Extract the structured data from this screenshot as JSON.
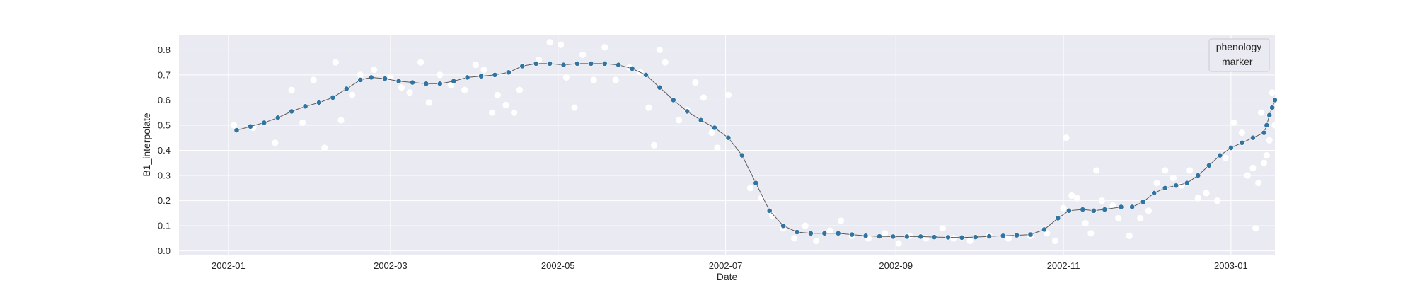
{
  "chart_data": {
    "type": "scatter",
    "title": "",
    "xlabel": "Date",
    "ylabel": "B1_interpolate",
    "xlim": [
      "2001-12-14",
      "2003-01-17"
    ],
    "ylim": [
      -0.015,
      0.86
    ],
    "x_ticks": [
      {
        "date": "2002-01-01",
        "label": "2002-01"
      },
      {
        "date": "2002-03-01",
        "label": "2002-03"
      },
      {
        "date": "2002-05-01",
        "label": "2002-05"
      },
      {
        "date": "2002-07-01",
        "label": "2002-07"
      },
      {
        "date": "2002-09-01",
        "label": "2002-09"
      },
      {
        "date": "2002-11-01",
        "label": "2002-11"
      },
      {
        "date": "2003-01-01",
        "label": "2003-01"
      }
    ],
    "y_ticks": [
      {
        "value": 0.0,
        "label": "0.0"
      },
      {
        "value": 0.1,
        "label": "0.1"
      },
      {
        "value": 0.2,
        "label": "0.2"
      },
      {
        "value": 0.3,
        "label": "0.3"
      },
      {
        "value": 0.4,
        "label": "0.4"
      },
      {
        "value": 0.5,
        "label": "0.5"
      },
      {
        "value": 0.6,
        "label": "0.6"
      },
      {
        "value": 0.7,
        "label": "0.7"
      },
      {
        "value": 0.8,
        "label": "0.8"
      }
    ],
    "grid": true,
    "legend": {
      "title": "phenology",
      "entries": [
        "marker"
      ],
      "placement": "top-right"
    },
    "colors": {
      "background": "#eaeaf2",
      "grid": "#ffffff",
      "interpolated": "#3274a1",
      "raw": "#ffffff"
    },
    "series": [
      {
        "role": "interpolated",
        "style": "line-with-markers",
        "points": [
          [
            "2002-01-04",
            0.48
          ],
          [
            "2002-01-09",
            0.495
          ],
          [
            "2002-01-14",
            0.51
          ],
          [
            "2002-01-19",
            0.53
          ],
          [
            "2002-01-24",
            0.555
          ],
          [
            "2002-01-29",
            0.575
          ],
          [
            "2002-02-03",
            0.59
          ],
          [
            "2002-02-08",
            0.61
          ],
          [
            "2002-02-13",
            0.645
          ],
          [
            "2002-02-18",
            0.68
          ],
          [
            "2002-02-22",
            0.69
          ],
          [
            "2002-02-27",
            0.685
          ],
          [
            "2002-03-04",
            0.675
          ],
          [
            "2002-03-09",
            0.67
          ],
          [
            "2002-03-14",
            0.665
          ],
          [
            "2002-03-19",
            0.665
          ],
          [
            "2002-03-24",
            0.675
          ],
          [
            "2002-03-29",
            0.69
          ],
          [
            "2002-04-03",
            0.695
          ],
          [
            "2002-04-08",
            0.7
          ],
          [
            "2002-04-13",
            0.71
          ],
          [
            "2002-04-18",
            0.735
          ],
          [
            "2002-04-23",
            0.745
          ],
          [
            "2002-04-28",
            0.745
          ],
          [
            "2002-05-03",
            0.74
          ],
          [
            "2002-05-08",
            0.745
          ],
          [
            "2002-05-13",
            0.745
          ],
          [
            "2002-05-18",
            0.745
          ],
          [
            "2002-05-23",
            0.74
          ],
          [
            "2002-05-28",
            0.725
          ],
          [
            "2002-06-02",
            0.7
          ],
          [
            "2002-06-07",
            0.65
          ],
          [
            "2002-06-12",
            0.6
          ],
          [
            "2002-06-17",
            0.555
          ],
          [
            "2002-06-22",
            0.52
          ],
          [
            "2002-06-27",
            0.49
          ],
          [
            "2002-07-02",
            0.45
          ],
          [
            "2002-07-07",
            0.38
          ],
          [
            "2002-07-12",
            0.27
          ],
          [
            "2002-07-17",
            0.16
          ],
          [
            "2002-07-22",
            0.1
          ],
          [
            "2002-07-27",
            0.075
          ],
          [
            "2002-08-01",
            0.07
          ],
          [
            "2002-08-06",
            0.07
          ],
          [
            "2002-08-11",
            0.07
          ],
          [
            "2002-08-16",
            0.065
          ],
          [
            "2002-08-21",
            0.06
          ],
          [
            "2002-08-26",
            0.058
          ],
          [
            "2002-08-31",
            0.057
          ],
          [
            "2002-09-05",
            0.057
          ],
          [
            "2002-09-10",
            0.057
          ],
          [
            "2002-09-15",
            0.055
          ],
          [
            "2002-09-20",
            0.054
          ],
          [
            "2002-09-25",
            0.053
          ],
          [
            "2002-09-30",
            0.055
          ],
          [
            "2002-10-05",
            0.058
          ],
          [
            "2002-10-10",
            0.06
          ],
          [
            "2002-10-15",
            0.062
          ],
          [
            "2002-10-20",
            0.065
          ],
          [
            "2002-10-25",
            0.085
          ],
          [
            "2002-10-30",
            0.13
          ],
          [
            "2002-11-03",
            0.16
          ],
          [
            "2002-11-08",
            0.165
          ],
          [
            "2002-11-12",
            0.16
          ],
          [
            "2002-11-16",
            0.165
          ],
          [
            "2002-11-22",
            0.175
          ],
          [
            "2002-11-26",
            0.175
          ],
          [
            "2002-11-30",
            0.195
          ],
          [
            "2002-12-04",
            0.23
          ],
          [
            "2002-12-08",
            0.25
          ],
          [
            "2002-12-12",
            0.26
          ],
          [
            "2002-12-16",
            0.27
          ],
          [
            "2002-12-20",
            0.3
          ],
          [
            "2002-12-24",
            0.34
          ],
          [
            "2002-12-28",
            0.38
          ],
          [
            "2003-01-01",
            0.41
          ],
          [
            "2003-01-05",
            0.43
          ],
          [
            "2003-01-09",
            0.45
          ],
          [
            "2003-01-13",
            0.47
          ],
          [
            "2003-01-14",
            0.5
          ],
          [
            "2003-01-15",
            0.54
          ],
          [
            "2003-01-16",
            0.57
          ],
          [
            "2003-01-17",
            0.6
          ]
        ]
      },
      {
        "role": "raw",
        "style": "markers",
        "points": [
          [
            "2002-01-03",
            0.5
          ],
          [
            "2002-01-10",
            0.49
          ],
          [
            "2002-01-18",
            0.43
          ],
          [
            "2002-01-24",
            0.64
          ],
          [
            "2002-01-28",
            0.51
          ],
          [
            "2002-02-01",
            0.68
          ],
          [
            "2002-02-05",
            0.41
          ],
          [
            "2002-02-09",
            0.75
          ],
          [
            "2002-02-11",
            0.52
          ],
          [
            "2002-02-15",
            0.62
          ],
          [
            "2002-02-18",
            0.7
          ],
          [
            "2002-02-23",
            0.72
          ],
          [
            "2002-03-01",
            0.69
          ],
          [
            "2002-03-05",
            0.65
          ],
          [
            "2002-03-08",
            0.63
          ],
          [
            "2002-03-12",
            0.75
          ],
          [
            "2002-03-15",
            0.59
          ],
          [
            "2002-03-19",
            0.7
          ],
          [
            "2002-03-23",
            0.66
          ],
          [
            "2002-03-28",
            0.64
          ],
          [
            "2002-04-01",
            0.74
          ],
          [
            "2002-04-04",
            0.72
          ],
          [
            "2002-04-07",
            0.55
          ],
          [
            "2002-04-09",
            0.62
          ],
          [
            "2002-04-12",
            0.58
          ],
          [
            "2002-04-15",
            0.55
          ],
          [
            "2002-04-17",
            0.64
          ],
          [
            "2002-04-24",
            0.76
          ],
          [
            "2002-04-28",
            0.83
          ],
          [
            "2002-05-02",
            0.82
          ],
          [
            "2002-05-04",
            0.69
          ],
          [
            "2002-05-07",
            0.57
          ],
          [
            "2002-05-10",
            0.78
          ],
          [
            "2002-05-14",
            0.68
          ],
          [
            "2002-05-18",
            0.81
          ],
          [
            "2002-05-22",
            0.68
          ],
          [
            "2002-05-27",
            0.73
          ],
          [
            "2002-05-31",
            0.71
          ],
          [
            "2002-06-03",
            0.57
          ],
          [
            "2002-06-05",
            0.42
          ],
          [
            "2002-06-07",
            0.8
          ],
          [
            "2002-06-09",
            0.75
          ],
          [
            "2002-06-14",
            0.52
          ],
          [
            "2002-06-17",
            0.56
          ],
          [
            "2002-06-20",
            0.67
          ],
          [
            "2002-06-23",
            0.61
          ],
          [
            "2002-06-26",
            0.47
          ],
          [
            "2002-06-28",
            0.41
          ],
          [
            "2002-07-02",
            0.62
          ],
          [
            "2002-07-10",
            0.25
          ],
          [
            "2002-07-14",
            0.21
          ],
          [
            "2002-07-18",
            0.14
          ],
          [
            "2002-07-22",
            0.09
          ],
          [
            "2002-07-26",
            0.05
          ],
          [
            "2002-07-30",
            0.1
          ],
          [
            "2002-08-03",
            0.04
          ],
          [
            "2002-08-08",
            0.08
          ],
          [
            "2002-08-12",
            0.12
          ],
          [
            "2002-08-16",
            0.06
          ],
          [
            "2002-08-22",
            0.05
          ],
          [
            "2002-08-28",
            0.07
          ],
          [
            "2002-09-02",
            0.03
          ],
          [
            "2002-09-06",
            0.06
          ],
          [
            "2002-09-12",
            0.05
          ],
          [
            "2002-09-18",
            0.09
          ],
          [
            "2002-09-22",
            0.05
          ],
          [
            "2002-09-28",
            0.04
          ],
          [
            "2002-10-05",
            0.06
          ],
          [
            "2002-10-12",
            0.05
          ],
          [
            "2002-10-20",
            0.06
          ],
          [
            "2002-10-26",
            0.07
          ],
          [
            "2002-10-29",
            0.04
          ],
          [
            "2002-11-01",
            0.17
          ],
          [
            "2002-11-02",
            0.45
          ],
          [
            "2002-11-04",
            0.22
          ],
          [
            "2002-11-06",
            0.21
          ],
          [
            "2002-11-09",
            0.11
          ],
          [
            "2002-11-11",
            0.07
          ],
          [
            "2002-11-13",
            0.32
          ],
          [
            "2002-11-15",
            0.2
          ],
          [
            "2002-11-19",
            0.18
          ],
          [
            "2002-11-21",
            0.13
          ],
          [
            "2002-11-25",
            0.06
          ],
          [
            "2002-11-29",
            0.13
          ],
          [
            "2002-12-02",
            0.16
          ],
          [
            "2002-12-05",
            0.27
          ],
          [
            "2002-12-08",
            0.32
          ],
          [
            "2002-12-11",
            0.29
          ],
          [
            "2002-12-14",
            0.26
          ],
          [
            "2002-12-17",
            0.32
          ],
          [
            "2002-12-20",
            0.21
          ],
          [
            "2002-12-23",
            0.23
          ],
          [
            "2002-12-27",
            0.2
          ],
          [
            "2002-12-30",
            0.37
          ],
          [
            "2003-01-02",
            0.51
          ],
          [
            "2003-01-05",
            0.47
          ],
          [
            "2003-01-07",
            0.3
          ],
          [
            "2003-01-09",
            0.33
          ],
          [
            "2003-01-10",
            0.09
          ],
          [
            "2003-01-11",
            0.27
          ],
          [
            "2003-01-12",
            0.55
          ],
          [
            "2003-01-13",
            0.35
          ],
          [
            "2003-01-14",
            0.38
          ],
          [
            "2003-01-15",
            0.44
          ],
          [
            "2003-01-16",
            0.63
          ],
          [
            "2003-01-17",
            0.5
          ]
        ]
      }
    ]
  }
}
